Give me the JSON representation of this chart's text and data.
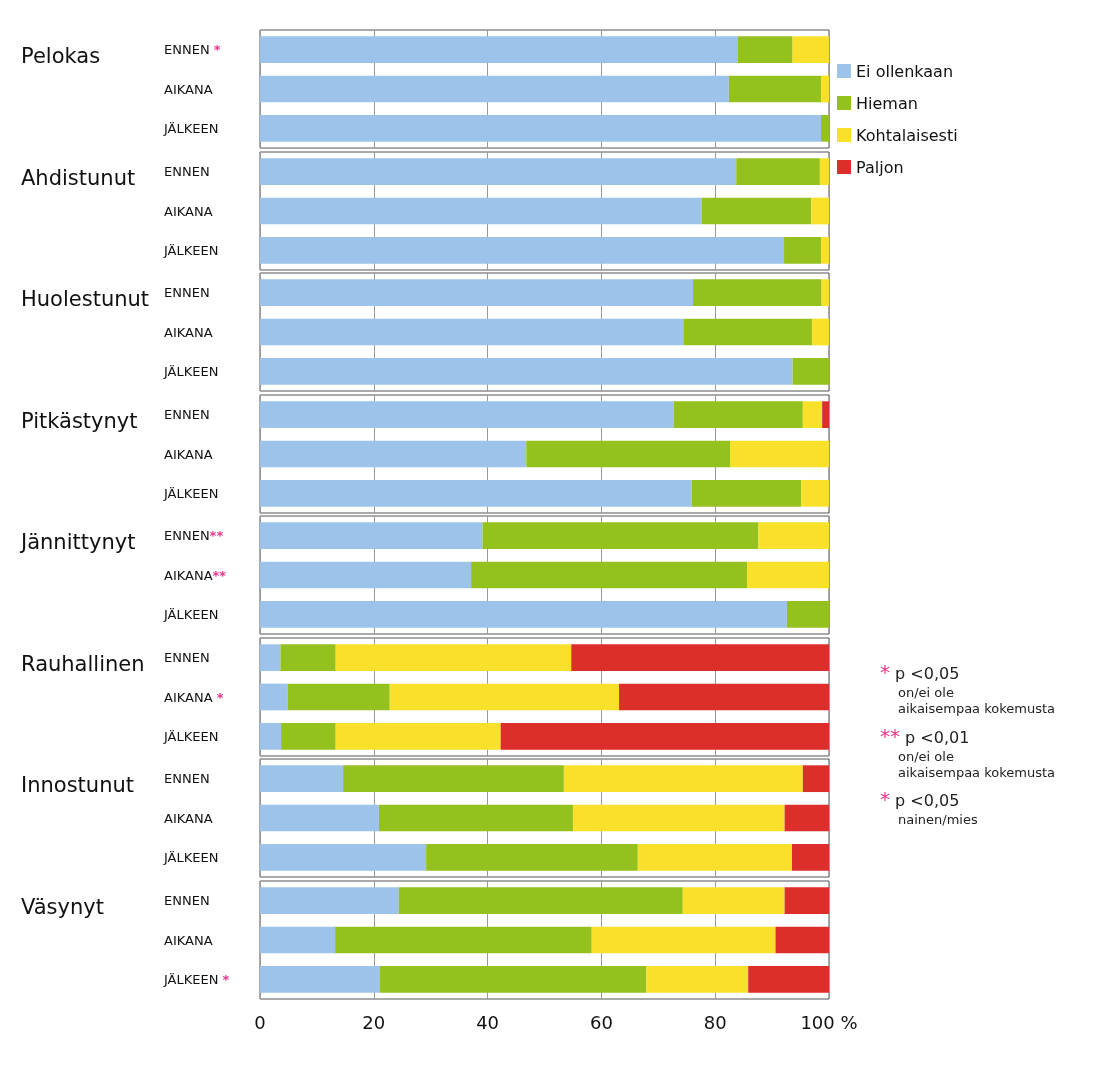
{
  "chart_data": [
    {
      "type": "bar",
      "orientation": "horizontal",
      "stacked": true,
      "title": "Pelokas",
      "categories": [
        "ENNEN *",
        "AIKANA",
        "JÄLKEEN"
      ],
      "xlim": [
        0,
        100
      ],
      "xticks": [
        0,
        20,
        40,
        60,
        80,
        100
      ],
      "grid": "x",
      "tick_labels": "y",
      "legend": "right",
      "series": [
        {
          "name": "Ei ollenkaan",
          "color": "#9dc3ea",
          "values": [
            84.0,
            82.4,
            98.6
          ]
        },
        {
          "name": "Hieman",
          "color": "#95c11f",
          "values": [
            9.6,
            16.2,
            1.4
          ]
        },
        {
          "name": "Kohtalaisesti",
          "color": "#f9e02b",
          "values": [
            6.4,
            1.4,
            0
          ]
        },
        {
          "name": "Paljon",
          "color": "#dc2e2b",
          "values": [
            0,
            0,
            0
          ]
        }
      ]
    },
    {
      "type": "bar",
      "orientation": "horizontal",
      "stacked": true,
      "title": "Ahdistunut",
      "categories": [
        "ENNEN",
        "AIKANA",
        "JÄLKEEN"
      ],
      "xlim": [
        0,
        100
      ],
      "xticks": [
        0,
        20,
        40,
        60,
        80,
        100
      ],
      "grid": "x",
      "tick_labels": "y",
      "series": [
        {
          "color": "#9dc3ea",
          "values": [
            83.7,
            77.6,
            92.1
          ]
        },
        {
          "color": "#95c11f",
          "values": [
            14.7,
            19.3,
            6.5
          ]
        },
        {
          "color": "#f9e02b",
          "values": [
            1.6,
            3.1,
            1.4
          ]
        },
        {
          "color": "#dc2e2b",
          "values": [
            0,
            0,
            0
          ]
        }
      ]
    },
    {
      "type": "bar",
      "orientation": "horizontal",
      "stacked": true,
      "title": "Huolestunut",
      "categories": [
        "ENNEN",
        "AIKANA",
        "JÄLKEEN"
      ],
      "xlim": [
        0,
        100
      ],
      "xticks": [
        0,
        20,
        40,
        60,
        80,
        100
      ],
      "grid": "x",
      "tick_labels": "y",
      "series": [
        {
          "color": "#9dc3ea",
          "values": [
            76.1,
            74.4,
            93.6
          ]
        },
        {
          "color": "#95c11f",
          "values": [
            22.6,
            22.6,
            6.4
          ]
        },
        {
          "color": "#f9e02b",
          "values": [
            1.3,
            3.0,
            0
          ]
        },
        {
          "color": "#dc2e2b",
          "values": [
            0,
            0,
            0
          ]
        }
      ]
    },
    {
      "type": "bar",
      "orientation": "horizontal",
      "stacked": true,
      "title": "Pitkästynyt",
      "categories": [
        "ENNEN",
        "AIKANA",
        "JÄLKEEN"
      ],
      "xlim": [
        0,
        100
      ],
      "xticks": [
        0,
        20,
        40,
        60,
        80,
        100
      ],
      "grid": "x",
      "tick_labels": "y",
      "series": [
        {
          "color": "#9dc3ea",
          "values": [
            72.7,
            46.8,
            75.9
          ]
        },
        {
          "color": "#95c11f",
          "values": [
            22.7,
            35.8,
            19.2
          ]
        },
        {
          "color": "#f9e02b",
          "values": [
            3.4,
            17.4,
            4.9
          ]
        },
        {
          "color": "#dc2e2b",
          "values": [
            1.2,
            0,
            0
          ]
        }
      ]
    },
    {
      "type": "bar",
      "orientation": "horizontal",
      "stacked": true,
      "title": "Jännittynyt",
      "categories": [
        "ENNEN**",
        "AIKANA**",
        "JÄLKEEN"
      ],
      "xlim": [
        0,
        100
      ],
      "xticks": [
        0,
        20,
        40,
        60,
        80,
        100
      ],
      "grid": "x",
      "tick_labels": "y",
      "series": [
        {
          "color": "#9dc3ea",
          "values": [
            39.1,
            37.1,
            92.6
          ]
        },
        {
          "color": "#95c11f",
          "values": [
            48.5,
            48.5,
            7.4
          ]
        },
        {
          "color": "#f9e02b",
          "values": [
            12.4,
            14.4,
            0
          ]
        },
        {
          "color": "#dc2e2b",
          "values": [
            0,
            0,
            0
          ]
        }
      ]
    },
    {
      "type": "bar",
      "orientation": "horizontal",
      "stacked": true,
      "title": "Rauhallinen",
      "categories": [
        "ENNEN",
        "AIKANA *",
        "JÄLKEEN"
      ],
      "xlim": [
        0,
        100
      ],
      "xticks": [
        0,
        20,
        40,
        60,
        80,
        100
      ],
      "grid": "x",
      "tick_labels": "y",
      "series": [
        {
          "color": "#9dc3ea",
          "values": [
            3.6,
            4.9,
            3.7
          ]
        },
        {
          "color": "#95c11f",
          "values": [
            9.7,
            17.9,
            9.6
          ]
        },
        {
          "color": "#f9e02b",
          "values": [
            41.4,
            40.3,
            29.0
          ]
        },
        {
          "color": "#dc2e2b",
          "values": [
            45.3,
            36.9,
            57.7
          ]
        }
      ]
    },
    {
      "type": "bar",
      "orientation": "horizontal",
      "stacked": true,
      "title": "Innostunut",
      "categories": [
        "ENNEN",
        "AIKANA",
        "JÄLKEEN"
      ],
      "xlim": [
        0,
        100
      ],
      "xticks": [
        0,
        20,
        40,
        60,
        80,
        100
      ],
      "grid": "x",
      "tick_labels": "y",
      "series": [
        {
          "color": "#9dc3ea",
          "values": [
            14.6,
            20.9,
            29.2
          ]
        },
        {
          "color": "#95c11f",
          "values": [
            38.8,
            34.1,
            37.2
          ]
        },
        {
          "color": "#f9e02b",
          "values": [
            42.0,
            37.2,
            27.1
          ]
        },
        {
          "color": "#dc2e2b",
          "values": [
            4.6,
            7.8,
            6.5
          ]
        }
      ]
    },
    {
      "type": "bar",
      "orientation": "horizontal",
      "stacked": true,
      "title": "Väsynyt",
      "categories": [
        "ENNEN",
        "AIKANA",
        "JÄLKEEN *"
      ],
      "xlim": [
        0,
        100
      ],
      "xticks": [
        0,
        20,
        40,
        60,
        80,
        {
          "value": 100,
          "label": "100 %"
        }
      ],
      "grid": "x",
      "annotations": [
        "* p <0,05\non/ei ole\naikaisempaa kokemusta",
        "** p <0,01\non/ei ole\naikaisempaa kokemusta",
        "* p <0,05\nnainen/mies"
      ],
      "series": [
        {
          "color": "#9dc3ea",
          "values": [
            24.4,
            13.2,
            21.1
          ]
        },
        {
          "color": "#95c11f",
          "values": [
            49.9,
            45.1,
            46.8
          ]
        },
        {
          "color": "#f9e02b",
          "values": [
            17.9,
            32.3,
            17.9
          ]
        },
        {
          "color": "#dc2e2b",
          "values": [
            7.8,
            9.4,
            14.2
          ]
        }
      ]
    }
  ]
}
